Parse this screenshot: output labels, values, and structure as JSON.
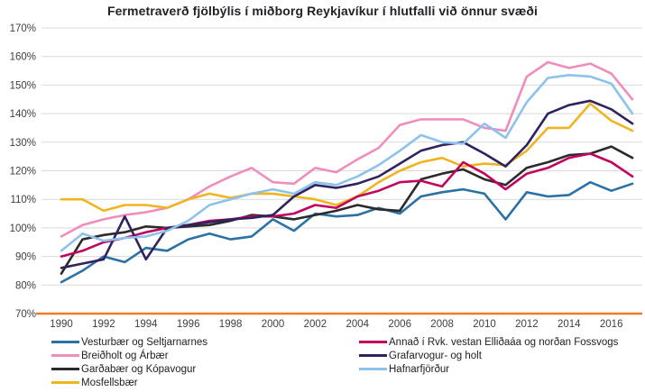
{
  "chart_data": {
    "type": "line",
    "title": "Fermetraverð fjölbýlis í miðborg Reykjavíkur í hlutfalli við önnur svæði",
    "x": [
      1990,
      1991,
      1992,
      1993,
      1994,
      1995,
      1996,
      1997,
      1998,
      1999,
      2000,
      2001,
      2002,
      2003,
      2004,
      2005,
      2006,
      2007,
      2008,
      2009,
      2010,
      2011,
      2012,
      2013,
      2014,
      2015,
      2016,
      2017
    ],
    "x_tick_labels": [
      "1990",
      "1992",
      "1994",
      "1996",
      "1998",
      "2000",
      "2002",
      "2004",
      "2006",
      "2008",
      "2010",
      "2012",
      "2014",
      "2016"
    ],
    "y_ticks": [
      170,
      160,
      150,
      140,
      130,
      120,
      110,
      100,
      90,
      80,
      70
    ],
    "y_tick_suffix": "%",
    "ylim": [
      70,
      170
    ],
    "grid": true,
    "legend_position": "bottom-two-columns",
    "baseline": {
      "value": 70,
      "color": "#EC7C2F"
    },
    "series": [
      {
        "name": "Vesturbær og Seltjarnarnes",
        "color": "#2A72A5",
        "values": [
          81,
          85,
          90,
          88,
          93,
          92,
          96,
          98,
          96,
          97,
          103,
          99,
          105,
          104,
          104.5,
          107,
          105,
          111,
          112.5,
          113.5,
          112,
          103,
          112.5,
          111,
          111.5,
          116,
          113,
          115.5
        ]
      },
      {
        "name": "Breiðholt og Árbær",
        "color": "#F18DBB",
        "values": [
          97,
          101,
          103,
          104.5,
          105.5,
          107,
          110,
          114.5,
          118,
          121,
          116,
          115.5,
          121,
          119.5,
          124,
          128,
          136,
          138,
          138,
          138,
          135,
          134,
          153,
          158,
          156,
          157.5,
          154,
          145
        ]
      },
      {
        "name": "Garðabær og Kópavogur",
        "color": "#2B2B2B",
        "values": [
          84,
          96,
          97.5,
          98.5,
          100.5,
          100,
          100.5,
          101,
          102.5,
          104.5,
          104,
          103,
          104.5,
          106,
          108,
          106.5,
          106,
          117,
          119,
          120.5,
          117,
          115,
          121,
          123,
          125.5,
          126,
          128.5,
          124.5
        ]
      },
      {
        "name": "Mosfellsbær",
        "color": "#EFB520",
        "values": [
          110,
          110,
          106,
          108,
          108,
          107,
          110,
          112,
          110.5,
          112,
          112,
          111,
          110,
          108,
          111,
          116,
          120,
          123,
          124.5,
          121.5,
          122.5,
          122,
          127,
          135,
          135,
          143.5,
          137.5,
          134
        ]
      },
      {
        "name": "Annað í Rvk. vestan Elliðaáa og norðan Fossvogs",
        "color": "#C1055F",
        "values": [
          90,
          92,
          95,
          96.5,
          98.5,
          100,
          101,
          102.5,
          103,
          104,
          104,
          105,
          108,
          107,
          111,
          113,
          116,
          116.5,
          114.5,
          123,
          119,
          113.5,
          119,
          121,
          124.5,
          126,
          123,
          118
        ]
      },
      {
        "name": "Grafarvogur- og holt",
        "color": "#31215F",
        "values": [
          86,
          87.5,
          89,
          104,
          89,
          100,
          101,
          102,
          103,
          103.5,
          104.5,
          111,
          115,
          114,
          115.5,
          118,
          122.5,
          127,
          129,
          130,
          126,
          121.5,
          129,
          140,
          143,
          144.5,
          141.5,
          136.5
        ]
      },
      {
        "name": "Hafnarfjörður",
        "color": "#8CC2EC",
        "values": [
          92,
          98,
          95.5,
          96.5,
          97,
          99,
          102.5,
          108,
          110,
          112,
          113.5,
          112,
          116,
          115,
          118,
          122,
          127,
          132.5,
          130,
          129.5,
          136.5,
          131.5,
          144,
          152.5,
          153.5,
          153,
          150.5,
          140
        ]
      }
    ]
  },
  "colors": {
    "gridline": "#D9D9D9",
    "tick_label": "#3F3F3F",
    "title": "#212129"
  }
}
